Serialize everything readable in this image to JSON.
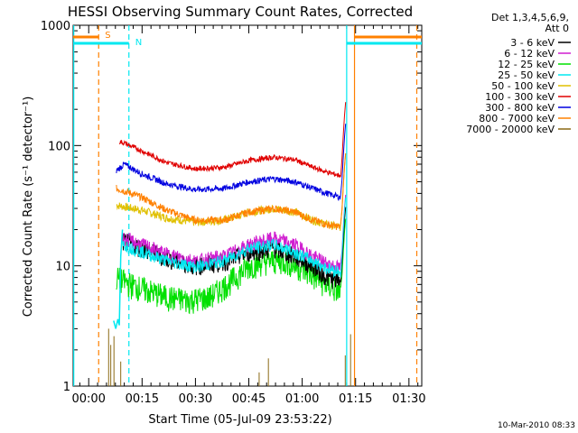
{
  "chart_data": {
    "type": "line",
    "title": "HESSI Observing Summary Count Rates, Corrected",
    "xlabel": "Start Time (05-Jul-09 23:53:22)",
    "ylabel": "Corrected Count Rate (s⁻¹ detector⁻¹)",
    "yscale": "log",
    "ylim": [
      1,
      1000
    ],
    "xlim_minutes": [
      -4.37,
      93.6
    ],
    "x_ticks": [
      {
        "label": "00:00",
        "minutes": 0
      },
      {
        "label": "00:15",
        "minutes": 15
      },
      {
        "label": "00:30",
        "minutes": 30
      },
      {
        "label": "00:45",
        "minutes": 45
      },
      {
        "label": "01:00",
        "minutes": 60
      },
      {
        "label": "01:15",
        "minutes": 75
      },
      {
        "label": "01:30",
        "minutes": 90
      }
    ],
    "y_ticks": [
      {
        "label": "1",
        "value": 1
      },
      {
        "label": "10",
        "value": 10
      },
      {
        "label": "100",
        "value": 100
      },
      {
        "label": "1000",
        "value": 1000
      }
    ],
    "legend_header": [
      "Det 1,3,4,5,6,9,",
      "Att 0"
    ],
    "legend_position": "outside-right",
    "series": [
      {
        "name": "3 - 6 keV",
        "color": "#000000",
        "x": [
          9.6,
          15,
          22,
          30,
          38,
          45,
          52,
          58,
          63,
          67,
          70.9
        ],
        "y": [
          16,
          14,
          11.5,
          10,
          10.8,
          13,
          14,
          12,
          10,
          8,
          7.5
        ]
      },
      {
        "name": "6 - 12 keV",
        "color": "#d01ed0",
        "x": [
          9.6,
          15,
          22,
          30,
          38,
          45,
          52,
          58,
          63,
          67,
          70.9
        ],
        "y": [
          17,
          15,
          12.5,
          11,
          12,
          15,
          17,
          15,
          12,
          10.5,
          9.5
        ]
      },
      {
        "name": "12 - 25 keV",
        "color": "#00e000",
        "x": [
          7.8,
          9.6,
          12,
          15,
          22,
          28,
          34,
          40,
          45,
          50,
          55,
          60,
          65,
          70.9
        ],
        "y": [
          8,
          7.5,
          7,
          6.5,
          5.5,
          5.2,
          5.5,
          7.5,
          10,
          11,
          11,
          9.5,
          7.5,
          6
        ]
      },
      {
        "name": "25 - 50 keV",
        "color": "#00e8f0",
        "x": [
          9.6,
          15,
          22,
          30,
          38,
          45,
          52,
          58,
          63,
          67,
          70.9
        ],
        "y": [
          15,
          13,
          11,
          9.8,
          11,
          14,
          15,
          13,
          11,
          9.5,
          9
        ]
      },
      {
        "name": "50 - 100 keV",
        "color": "#e0c000",
        "x": [
          7.8,
          10,
          15,
          22,
          30,
          38,
          45,
          52,
          58,
          63,
          67,
          70.9
        ],
        "y": [
          32,
          31,
          29,
          25,
          23,
          24,
          28,
          30,
          28,
          24,
          22,
          21
        ]
      },
      {
        "name": "100 - 300 keV",
        "color": "#e00000",
        "x": [
          8.6,
          10,
          15,
          22,
          30,
          38,
          45,
          52,
          58,
          63,
          67,
          70.9
        ],
        "y": [
          108,
          105,
          90,
          72,
          64,
          66,
          75,
          80,
          76,
          66,
          60,
          56
        ]
      },
      {
        "name": "300 - 800 keV",
        "color": "#0000e0",
        "x": [
          7.8,
          10,
          15,
          22,
          30,
          38,
          45,
          52,
          58,
          63,
          67,
          70.9
        ],
        "y": [
          62,
          70,
          58,
          48,
          43,
          44,
          50,
          53,
          50,
          44,
          40,
          37
        ]
      },
      {
        "name": "800 - 7000 keV",
        "color": "#ff8000",
        "x": [
          7.8,
          10,
          15,
          22,
          30,
          38,
          45,
          52,
          58,
          63,
          67,
          70.9
        ],
        "y": [
          44,
          42,
          37,
          29,
          24,
          24,
          28,
          30,
          28,
          24,
          22,
          21
        ]
      },
      {
        "name": "7000 - 20000 keV",
        "color": "#8b6914",
        "x": [],
        "y": []
      }
    ],
    "flags": [
      {
        "label": "S",
        "color": "#ff8000",
        "bars_minutes": [
          [
            -4.37,
            2.8
          ],
          [
            74.7,
            93.6
          ]
        ],
        "y": 0
      },
      {
        "label": "N",
        "color": "#00e8f0",
        "bars_minutes": [
          [
            -4.37,
            11.3
          ],
          [
            72.5,
            93.6
          ]
        ],
        "y": 0
      }
    ],
    "footer_date": "10-Mar-2010 08:33",
    "grid": false
  }
}
